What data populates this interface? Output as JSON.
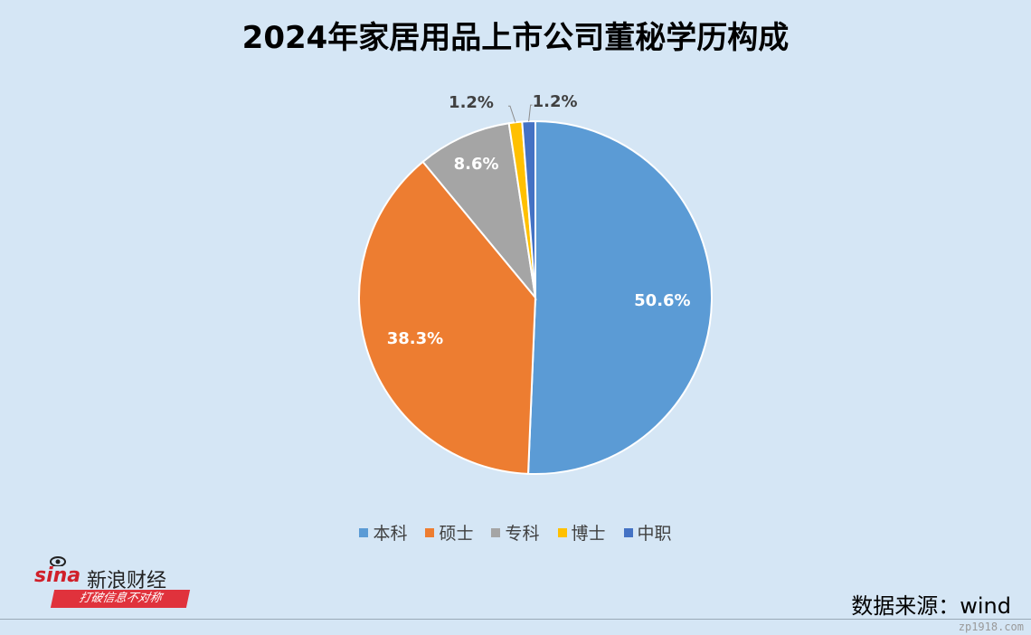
{
  "title": "2024年家居用品上市公司董秘学历构成",
  "source": "数据来源：wind",
  "brand": {
    "logo_text": "sina",
    "name": "新浪财经",
    "tagline": "打破信息不对称"
  },
  "watermark": "zp1918.com",
  "chart_data": {
    "type": "pie",
    "title": "2024年家居用品上市公司董秘学历构成",
    "categories": [
      "本科",
      "硕士",
      "专科",
      "博士",
      "中职"
    ],
    "values": [
      50.6,
      38.3,
      8.6,
      1.2,
      1.2
    ],
    "labels": [
      "50.6%",
      "38.3%",
      "8.6%",
      "1.2%",
      "1.2%"
    ],
    "colors": [
      "#5b9bd5",
      "#ed7d31",
      "#a5a5a5",
      "#ffc000",
      "#4472c4"
    ],
    "legend_position": "bottom"
  }
}
